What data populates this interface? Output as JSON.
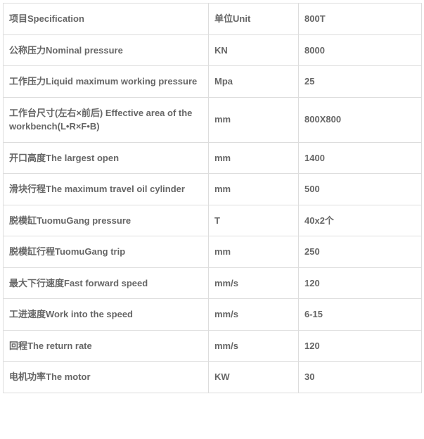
{
  "table": {
    "columns": [
      {
        "label": "项目Specification"
      },
      {
        "label": "单位Unit"
      },
      {
        "label": "800T"
      }
    ],
    "rows": [
      {
        "spec": "公称压力Nominal pressure",
        "unit": "KN",
        "value": "8000"
      },
      {
        "spec": "工作压力Liquid maximum working pressure",
        "unit": "Mpa",
        "value": "25"
      },
      {
        "spec": "工作台尺寸(左右×前后) Effective area of the workbench(L•R×F•B)",
        "unit": "mm",
        "value": "800X800"
      },
      {
        "spec": "开口高度The largest open",
        "unit": "mm",
        "value": "1400"
      },
      {
        "spec": "滑块行程The maximum travel oil cylinder",
        "unit": "mm",
        "value": "500"
      },
      {
        "spec": "脱模缸TuomuGang  pressure",
        "unit": "T",
        "value": "40x2个"
      },
      {
        "spec": "脱模缸行程TuomuGang trip",
        "unit": "mm",
        "value": "250"
      },
      {
        "spec": "最大下行速度Fast forward speed",
        "unit": "mm/s",
        "value": "120"
      },
      {
        "spec": "工进速度Work into the speed",
        "unit": "mm/s",
        "value": "6-15"
      },
      {
        "spec": "回程The return rate",
        "unit": "mm/s",
        "value": "120"
      },
      {
        "spec": "电机功率The motor",
        "unit": "KW",
        "value": "30"
      }
    ]
  },
  "styles": {
    "border_color": "#dddddd",
    "text_color": "#666666",
    "font_size": 13,
    "font_weight": "bold",
    "background_color": "#ffffff"
  }
}
